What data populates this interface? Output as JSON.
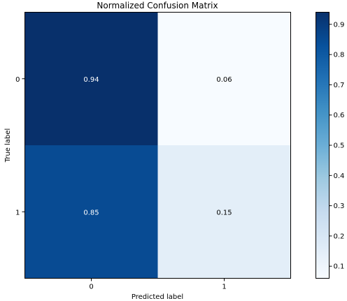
{
  "chart_data": {
    "type": "heatmap",
    "title": "Normalized Confusion Matrix",
    "xlabel": "Predicted label",
    "ylabel": "True label",
    "x_categories": [
      "0",
      "1"
    ],
    "y_categories": [
      "0",
      "1"
    ],
    "values": [
      [
        0.94,
        0.06
      ],
      [
        0.85,
        0.15
      ]
    ],
    "cell_labels": [
      [
        "0.94",
        "0.06"
      ],
      [
        "0.85",
        "0.15"
      ]
    ],
    "colormap": "Blues",
    "colorbar": {
      "vmin": 0.06,
      "vmax": 0.94,
      "ticks": [
        "0.1",
        "0.2",
        "0.3",
        "0.4",
        "0.5",
        "0.6",
        "0.7",
        "0.8",
        "0.9"
      ]
    },
    "colors": {
      "low": "#f7fbff",
      "high": "#08306b",
      "text_dark_cell": "#ffffff",
      "text_light_cell": "#000000"
    }
  }
}
